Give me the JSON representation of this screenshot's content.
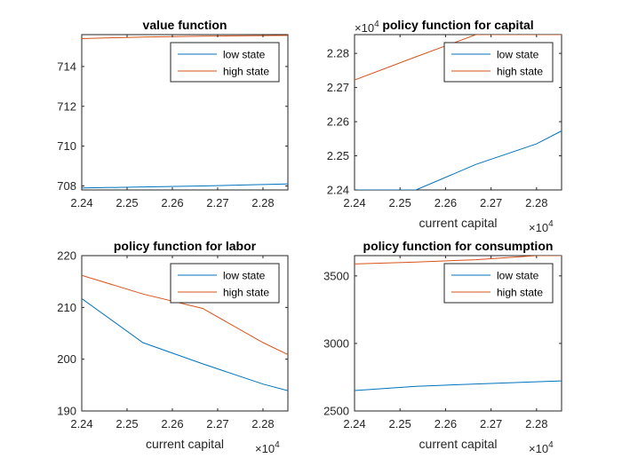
{
  "colors": {
    "low_state": "#0072BD",
    "high_state": "#D95319",
    "axis": "#262626"
  },
  "chart_data": [
    {
      "type": "line",
      "title": "value function",
      "xlabel": "",
      "ylabel": "",
      "x_exponent": "",
      "xlim": [
        2.24,
        2.2855
      ],
      "ylim": [
        707.8,
        715.6
      ],
      "xticks": [
        2.24,
        2.25,
        2.26,
        2.27,
        2.28
      ],
      "xtick_labels": [
        "2.24",
        "2.25",
        "2.26",
        "2.27",
        "2.28"
      ],
      "yticks": [
        708,
        710,
        712,
        714
      ],
      "ytick_labels": [
        "708",
        "710",
        "712",
        "714"
      ],
      "y_exponent": "",
      "legend": "top-right",
      "grid": false,
      "series": [
        {
          "name": "low state",
          "x": [
            2.24,
            2.2535,
            2.2667,
            2.28,
            2.2855
          ],
          "y": [
            707.9,
            707.95,
            708.0,
            708.07,
            708.1
          ]
        },
        {
          "name": "high state",
          "x": [
            2.24,
            2.2535,
            2.2667,
            2.28,
            2.2855
          ],
          "y": [
            715.4,
            715.48,
            715.52,
            715.55,
            715.56
          ]
        }
      ]
    },
    {
      "type": "line",
      "title": "policy function for capital",
      "xlabel": "current capital",
      "ylabel": "",
      "x_exponent": "4",
      "y_exponent": "4",
      "xlim": [
        2.24,
        2.2855
      ],
      "ylim": [
        2.24,
        2.2855
      ],
      "xticks": [
        2.24,
        2.25,
        2.26,
        2.27,
        2.28
      ],
      "xtick_labels": [
        "2.24",
        "2.25",
        "2.26",
        "2.27",
        "2.28"
      ],
      "yticks": [
        2.24,
        2.25,
        2.26,
        2.27,
        2.28
      ],
      "ytick_labels": [
        "2.24",
        "2.25",
        "2.26",
        "2.27",
        "2.28"
      ],
      "legend": "top-right",
      "grid": false,
      "series": [
        {
          "name": "low state",
          "x": [
            2.24,
            2.2535,
            2.2667,
            2.28,
            2.2855
          ],
          "y": [
            2.24,
            2.24,
            2.2475,
            2.2535,
            2.2573
          ]
        },
        {
          "name": "high state",
          "x": [
            2.24,
            2.2535,
            2.2667,
            2.2855
          ],
          "y": [
            2.2722,
            2.279,
            2.2855,
            2.2855
          ]
        }
      ]
    },
    {
      "type": "line",
      "title": "policy function for labor",
      "xlabel": "current capital",
      "ylabel": "",
      "x_exponent": "4",
      "y_exponent": "",
      "xlim": [
        2.24,
        2.2855
      ],
      "ylim": [
        190,
        220
      ],
      "xticks": [
        2.24,
        2.25,
        2.26,
        2.27,
        2.28
      ],
      "xtick_labels": [
        "2.24",
        "2.25",
        "2.26",
        "2.27",
        "2.28"
      ],
      "yticks": [
        190,
        200,
        210,
        220
      ],
      "ytick_labels": [
        "190",
        "200",
        "210",
        "220"
      ],
      "legend": "top-right",
      "grid": false,
      "series": [
        {
          "name": "low state",
          "x": [
            2.24,
            2.2535,
            2.2667,
            2.28,
            2.2855
          ],
          "y": [
            211.7,
            203.2,
            199.1,
            195.2,
            193.9
          ]
        },
        {
          "name": "high state",
          "x": [
            2.24,
            2.2535,
            2.2667,
            2.28,
            2.2855
          ],
          "y": [
            216.2,
            212.6,
            209.8,
            203.2,
            200.9
          ]
        }
      ]
    },
    {
      "type": "line",
      "title": "policy function for consumption",
      "xlabel": "current capital",
      "ylabel": "",
      "x_exponent": "4",
      "y_exponent": "",
      "xlim": [
        2.24,
        2.2855
      ],
      "ylim": [
        2500,
        3650
      ],
      "xticks": [
        2.24,
        2.25,
        2.26,
        2.27,
        2.28
      ],
      "xtick_labels": [
        "2.24",
        "2.25",
        "2.26",
        "2.27",
        "2.28"
      ],
      "yticks": [
        2500,
        3000,
        3500
      ],
      "ytick_labels": [
        "2500",
        "3000",
        "3500"
      ],
      "legend": "top-right",
      "grid": false,
      "series": [
        {
          "name": "low state",
          "x": [
            2.24,
            2.2535,
            2.2667,
            2.28,
            2.2855
          ],
          "y": [
            2651,
            2683,
            2700,
            2716,
            2723
          ]
        },
        {
          "name": "high state",
          "x": [
            2.24,
            2.2535,
            2.2667,
            2.28,
            2.2855
          ],
          "y": [
            3588,
            3603,
            3620,
            3650,
            3650
          ]
        }
      ]
    }
  ]
}
